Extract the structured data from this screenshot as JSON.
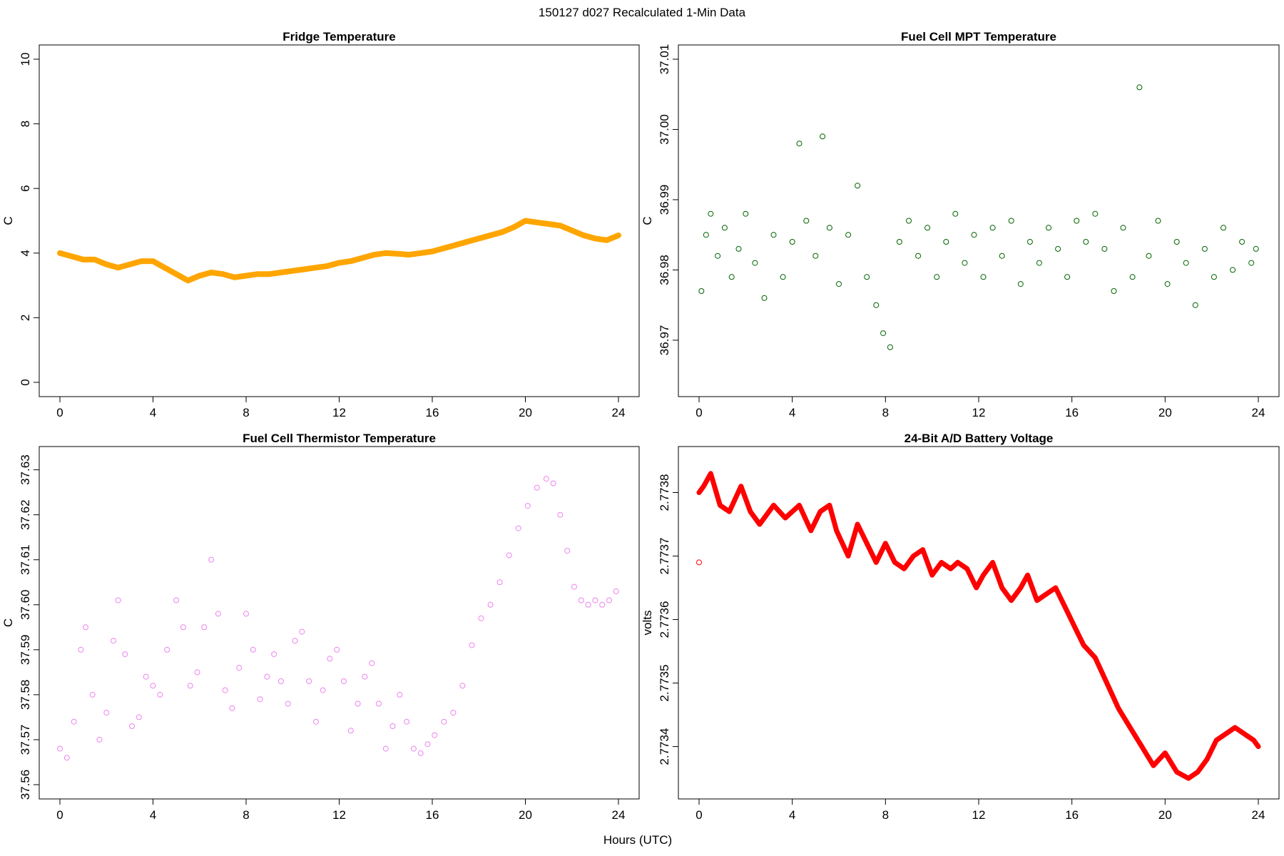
{
  "figure": {
    "title": "150127   d027   Recalculated 1-Min Data",
    "xlabel": "Hours (UTC)"
  },
  "chart_data": [
    {
      "id": "fridge",
      "type": "line",
      "title": "Fridge Temperature",
      "xlabel": "Hours (UTC)",
      "ylabel": "C",
      "xlim": [
        0,
        24
      ],
      "ylim": [
        0,
        10
      ],
      "xticks": [
        0,
        4,
        8,
        12,
        16,
        20,
        24
      ],
      "yticks": [
        0,
        2,
        4,
        6,
        8,
        10
      ],
      "ytick_labels": [
        "0",
        "2",
        "4",
        "6",
        "8",
        "10"
      ],
      "color": "#FFA500",
      "x": [
        0,
        0.5,
        1,
        1.5,
        2,
        2.5,
        3,
        3.5,
        4,
        4.5,
        5,
        5.5,
        6,
        6.5,
        7,
        7.5,
        8,
        8.5,
        9,
        9.5,
        10,
        10.5,
        11,
        11.5,
        12,
        12.5,
        13,
        13.5,
        14,
        14.5,
        15,
        15.5,
        16,
        16.5,
        17,
        17.5,
        18,
        18.5,
        19,
        19.5,
        20,
        20.5,
        21,
        21.5,
        22,
        22.5,
        23,
        23.5,
        24
      ],
      "y": [
        4.0,
        3.9,
        3.8,
        3.8,
        3.65,
        3.55,
        3.65,
        3.75,
        3.75,
        3.55,
        3.35,
        3.15,
        3.3,
        3.4,
        3.35,
        3.25,
        3.3,
        3.35,
        3.35,
        3.4,
        3.45,
        3.5,
        3.55,
        3.6,
        3.7,
        3.75,
        3.85,
        3.95,
        4.0,
        3.98,
        3.95,
        4.0,
        4.05,
        4.15,
        4.25,
        4.35,
        4.45,
        4.55,
        4.65,
        4.8,
        5.0,
        4.95,
        4.9,
        4.85,
        4.7,
        4.55,
        4.45,
        4.4,
        4.55
      ]
    },
    {
      "id": "mpt",
      "type": "scatter",
      "title": "Fuel Cell MPT Temperature",
      "xlabel": "Hours (UTC)",
      "ylabel": "C",
      "xlim": [
        0,
        24
      ],
      "ylim": [
        36.964,
        37.01
      ],
      "xticks": [
        0,
        4,
        8,
        12,
        16,
        20,
        24
      ],
      "yticks": [
        36.97,
        36.98,
        36.99,
        37.0,
        37.01
      ],
      "ytick_labels": [
        "36.97",
        "36.98",
        "36.99",
        "37.00",
        "37.01"
      ],
      "color": "#006400",
      "x": [
        0.1,
        0.3,
        0.5,
        0.8,
        1.1,
        1.4,
        1.7,
        2.0,
        2.4,
        2.8,
        3.2,
        3.6,
        4.0,
        4.3,
        4.6,
        5.0,
        5.3,
        5.6,
        6.0,
        6.4,
        6.8,
        7.2,
        7.6,
        7.9,
        8.2,
        8.6,
        9.0,
        9.4,
        9.8,
        10.2,
        10.6,
        11.0,
        11.4,
        11.8,
        12.2,
        12.6,
        13.0,
        13.4,
        13.8,
        14.2,
        14.6,
        15.0,
        15.4,
        15.8,
        16.2,
        16.6,
        17.0,
        17.4,
        17.8,
        18.2,
        18.6,
        18.9,
        19.3,
        19.7,
        20.1,
        20.5,
        20.9,
        21.3,
        21.7,
        22.1,
        22.5,
        22.9,
        23.3,
        23.7,
        23.9
      ],
      "y": [
        36.977,
        36.985,
        36.988,
        36.982,
        36.986,
        36.979,
        36.983,
        36.988,
        36.981,
        36.976,
        36.985,
        36.979,
        36.984,
        36.998,
        36.987,
        36.982,
        36.999,
        36.986,
        36.978,
        36.985,
        36.992,
        36.979,
        36.975,
        36.971,
        36.969,
        36.984,
        36.987,
        36.982,
        36.986,
        36.979,
        36.984,
        36.988,
        36.981,
        36.985,
        36.979,
        36.986,
        36.982,
        36.987,
        36.978,
        36.984,
        36.981,
        36.986,
        36.983,
        36.979,
        36.987,
        36.984,
        36.988,
        36.983,
        36.977,
        36.986,
        36.979,
        37.006,
        36.982,
        36.987,
        36.978,
        36.984,
        36.981,
        36.975,
        36.983,
        36.979,
        36.986,
        36.98,
        36.984,
        36.981,
        36.983
      ]
    },
    {
      "id": "thermistor",
      "type": "scatter",
      "title": "Fuel Cell Thermistor Temperature",
      "xlabel": "Hours (UTC)",
      "ylabel": "C",
      "xlim": [
        0,
        24
      ],
      "ylim": [
        37.56,
        37.632
      ],
      "xticks": [
        0,
        4,
        8,
        12,
        16,
        20,
        24
      ],
      "yticks": [
        37.56,
        37.57,
        37.58,
        37.59,
        37.6,
        37.61,
        37.62,
        37.63
      ],
      "ytick_labels": [
        "37.56",
        "37.57",
        "37.58",
        "37.59",
        "37.60",
        "37.61",
        "37.62",
        "37.63"
      ],
      "color": "#EE82EE",
      "x": [
        0.0,
        0.3,
        0.6,
        0.9,
        1.1,
        1.4,
        1.7,
        2.0,
        2.3,
        2.5,
        2.8,
        3.1,
        3.4,
        3.7,
        4.0,
        4.3,
        4.6,
        5.0,
        5.3,
        5.6,
        5.9,
        6.2,
        6.5,
        6.8,
        7.1,
        7.4,
        7.7,
        8.0,
        8.3,
        8.6,
        8.9,
        9.2,
        9.5,
        9.8,
        10.1,
        10.4,
        10.7,
        11.0,
        11.3,
        11.6,
        11.9,
        12.2,
        12.5,
        12.8,
        13.1,
        13.4,
        13.7,
        14.0,
        14.3,
        14.6,
        14.9,
        15.2,
        15.5,
        15.8,
        16.1,
        16.5,
        16.9,
        17.3,
        17.7,
        18.1,
        18.5,
        18.9,
        19.3,
        19.7,
        20.1,
        20.5,
        20.9,
        21.2,
        21.5,
        21.8,
        22.1,
        22.4,
        22.7,
        23.0,
        23.3,
        23.6,
        23.9
      ],
      "y": [
        37.568,
        37.566,
        37.574,
        37.59,
        37.595,
        37.58,
        37.57,
        37.576,
        37.592,
        37.601,
        37.589,
        37.573,
        37.575,
        37.584,
        37.582,
        37.58,
        37.59,
        37.601,
        37.595,
        37.582,
        37.585,
        37.595,
        37.61,
        37.598,
        37.581,
        37.577,
        37.586,
        37.598,
        37.59,
        37.579,
        37.584,
        37.589,
        37.583,
        37.578,
        37.592,
        37.594,
        37.583,
        37.574,
        37.581,
        37.588,
        37.59,
        37.583,
        37.572,
        37.578,
        37.584,
        37.587,
        37.578,
        37.568,
        37.573,
        37.58,
        37.574,
        37.568,
        37.567,
        37.569,
        37.571,
        37.574,
        37.576,
        37.582,
        37.591,
        37.597,
        37.6,
        37.605,
        37.611,
        37.617,
        37.622,
        37.626,
        37.628,
        37.627,
        37.62,
        37.612,
        37.604,
        37.601,
        37.6,
        37.601,
        37.6,
        37.601,
        37.603
      ]
    },
    {
      "id": "battery",
      "type": "line",
      "title": "24-Bit A/D Battery Voltage",
      "xlabel": "Hours (UTC)",
      "ylabel": "volts",
      "xlim": [
        0,
        24
      ],
      "ylim": [
        2.77334,
        2.77385
      ],
      "xticks": [
        0,
        4,
        8,
        12,
        16,
        20,
        24
      ],
      "yticks": [
        2.7734,
        2.7735,
        2.7736,
        2.7737,
        2.7738
      ],
      "ytick_labels": [
        "2.7734",
        "2.7735",
        "2.7736",
        "2.7737",
        "2.7738"
      ],
      "color": "#FF0000",
      "outlier": [
        0.0,
        2.77369
      ],
      "x": [
        0.0,
        0.2,
        0.5,
        0.9,
        1.3,
        1.8,
        2.2,
        2.6,
        3.2,
        3.7,
        4.3,
        4.8,
        5.2,
        5.6,
        5.9,
        6.4,
        6.8,
        7.2,
        7.6,
        8.0,
        8.4,
        8.8,
        9.2,
        9.6,
        10.0,
        10.4,
        10.8,
        11.1,
        11.5,
        11.9,
        12.2,
        12.6,
        13.0,
        13.4,
        13.8,
        14.1,
        14.5,
        14.9,
        15.3,
        15.7,
        16.1,
        16.5,
        17.0,
        17.5,
        18.0,
        18.5,
        19.0,
        19.5,
        20.0,
        20.5,
        21.0,
        21.4,
        21.8,
        22.2,
        22.6,
        23.0,
        23.4,
        23.8,
        24.0
      ],
      "y": [
        2.7738,
        2.77381,
        2.77383,
        2.77378,
        2.77377,
        2.77381,
        2.77377,
        2.77375,
        2.77378,
        2.77376,
        2.77378,
        2.77374,
        2.77377,
        2.77378,
        2.77374,
        2.7737,
        2.77375,
        2.77372,
        2.77369,
        2.77372,
        2.77369,
        2.77368,
        2.7737,
        2.77371,
        2.77367,
        2.77369,
        2.77368,
        2.77369,
        2.77368,
        2.77365,
        2.77367,
        2.77369,
        2.77365,
        2.77363,
        2.77365,
        2.77367,
        2.77363,
        2.77364,
        2.77365,
        2.77362,
        2.77359,
        2.77356,
        2.77354,
        2.7735,
        2.77346,
        2.77343,
        2.7734,
        2.77337,
        2.77339,
        2.77336,
        2.77335,
        2.77336,
        2.77338,
        2.77341,
        2.77342,
        2.77343,
        2.77342,
        2.77341,
        2.7734
      ]
    }
  ]
}
